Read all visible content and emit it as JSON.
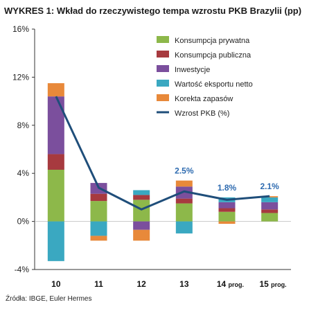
{
  "title": "WYKRES 1: Wkład do rzeczywistego tempa wzrostu PKB Brazylii (pp)",
  "source": "Źródła: IBGE, Euler Hermes",
  "colors": {
    "private_consumption": "#8db84a",
    "public_consumption": "#a73a3f",
    "investment": "#7b4f9d",
    "net_exports": "#3aa8c1",
    "inventory": "#e8893a",
    "gdp_line": "#1f4e7a",
    "axis": "#333333"
  },
  "chart_data": {
    "type": "bar",
    "stacked": true,
    "title": "WYKRES 1: Wkład do rzeczywistego tempa wzrostu PKB Brazylii (pp)",
    "categories": [
      "10",
      "11",
      "12",
      "13",
      "14",
      "15"
    ],
    "category_suffixes": [
      "",
      "",
      "",
      "",
      "prog.",
      "prog."
    ],
    "y_ticks": [
      "16%",
      "12%",
      "8%",
      "4%",
      "0%",
      "-4%"
    ],
    "ylim": [
      -4,
      16
    ],
    "series": [
      {
        "name": "Konsumpcja prywatna",
        "color_key": "private_consumption",
        "values": [
          4.3,
          1.7,
          1.8,
          1.5,
          0.8,
          0.7
        ]
      },
      {
        "name": "Konsumpcja publiczna",
        "color_key": "public_consumption",
        "values": [
          1.3,
          0.6,
          0.4,
          0.4,
          0.3,
          0.3
        ]
      },
      {
        "name": "Inwestycje",
        "color_key": "investment",
        "values": [
          4.8,
          0.9,
          -0.7,
          1.0,
          0.5,
          0.6
        ]
      },
      {
        "name": "Wartość eksportu netto",
        "color_key": "net_exports",
        "values": [
          -3.3,
          -1.2,
          0.4,
          -1.0,
          0.4,
          0.4
        ]
      },
      {
        "name": "Korekta zapasów",
        "color_key": "inventory",
        "values": [
          1.1,
          -0.4,
          -0.9,
          0.5,
          -0.2,
          0.1
        ]
      }
    ],
    "line": {
      "name": "Wzrost PKB (%)",
      "color_key": "gdp_line",
      "values": [
        10.4,
        2.8,
        1.0,
        2.5,
        1.8,
        2.1
      ]
    },
    "data_labels": [
      {
        "index": 3,
        "text": "2.5%"
      },
      {
        "index": 4,
        "text": "1.8%"
      },
      {
        "index": 5,
        "text": "2.1%"
      }
    ],
    "legend_position": "top-right",
    "grid": false
  }
}
